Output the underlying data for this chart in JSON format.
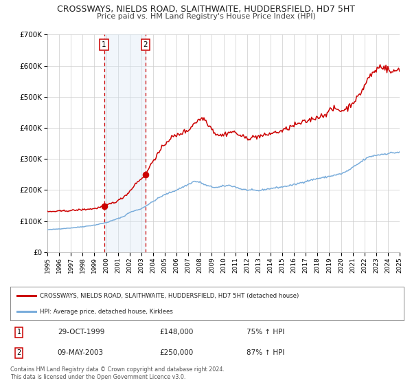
{
  "title": "CROSSWAYS, NIELDS ROAD, SLAITHWAITE, HUDDERSFIELD, HD7 5HT",
  "subtitle": "Price paid vs. HM Land Registry's House Price Index (HPI)",
  "red_label": "CROSSWAYS, NIELDS ROAD, SLAITHWAITE, HUDDERSFIELD, HD7 5HT (detached house)",
  "blue_label": "HPI: Average price, detached house, Kirklees",
  "transaction1_date": "29-OCT-1999",
  "transaction1_price": "£148,000",
  "transaction1_hpi": "75% ↑ HPI",
  "transaction1_year": 1999.83,
  "transaction1_value": 148000,
  "transaction2_date": "09-MAY-2003",
  "transaction2_price": "£250,000",
  "transaction2_hpi": "87% ↑ HPI",
  "transaction2_year": 2003.36,
  "transaction2_value": 250000,
  "background_color": "#ffffff",
  "plot_background": "#ffffff",
  "grid_color": "#cccccc",
  "red_line_color": "#cc0000",
  "blue_line_color": "#7aaddb",
  "shade_color": "#d8e8f5",
  "xmin": 1995,
  "xmax": 2025,
  "ymin": 0,
  "ymax": 700000,
  "yticks": [
    0,
    100000,
    200000,
    300000,
    400000,
    500000,
    600000,
    700000
  ],
  "ylabels": [
    "£0",
    "£100K",
    "£200K",
    "£300K",
    "£400K",
    "£500K",
    "£600K",
    "£700K"
  ],
  "copyright": "Contains HM Land Registry data © Crown copyright and database right 2024.\nThis data is licensed under the Open Government Licence v3.0."
}
